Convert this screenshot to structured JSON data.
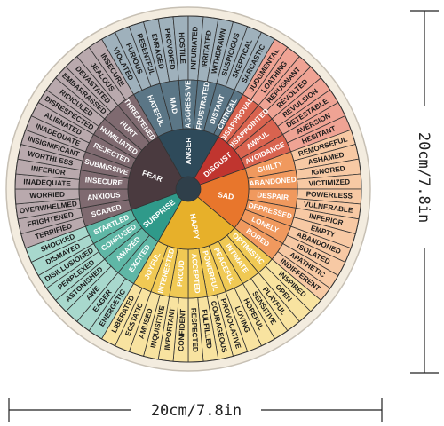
{
  "dimensions": {
    "horizontal": "20cm/7.8in",
    "vertical": "20cm/7.8in"
  },
  "colors": {
    "background": "#ffffff",
    "rim": "#f3ecdf",
    "rim_stroke": "#c7c0b4",
    "line": "#333333",
    "core_dark": "#2f3f4a"
  },
  "wheel": {
    "core": [
      {
        "label": "ANGER",
        "color": "#2e4a5a"
      },
      {
        "label": "DISGUST",
        "color": "#c0352f"
      },
      {
        "label": "SAD",
        "color": "#e8762c"
      },
      {
        "label": "HAPPY",
        "color": "#e7b02a"
      },
      {
        "label": "SURPRISE",
        "color": "#2f9a8a"
      },
      {
        "label": "FEAR",
        "color": "#4a3a3f"
      }
    ],
    "families": [
      {
        "name": "ANGER",
        "mid_color": "#5b7686",
        "outer_color": "#9fb1bc",
        "groups": [
          {
            "mid": "HATEFUL",
            "outer": [
              "VIOLATED",
              "FURIOUS",
              "RESENTFUL"
            ]
          },
          {
            "mid": "MAD",
            "outer": [
              "ENRAGED",
              "PROVOKED"
            ]
          },
          {
            "mid": "AGGRESSIVE",
            "outer": [
              "HOSTILE",
              "INFURIATED"
            ]
          },
          {
            "mid": "FRUSTRATED",
            "outer": [
              "IRRITATED",
              "WITHDRAWN"
            ]
          },
          {
            "mid": "DISTANT",
            "outer": [
              "SUSPICIOUS",
              "SKEPTICAL"
            ]
          },
          {
            "mid": "CRITICAL",
            "outer": [
              "SARCASTIC"
            ]
          }
        ]
      },
      {
        "name": "DISGUST",
        "mid_color": "#d9634f",
        "outer_color": "#efa394",
        "groups": [
          {
            "mid": "DISAPPROVAL",
            "outer": [
              "JUDGMENTAL",
              "LOATHING"
            ]
          },
          {
            "mid": "DISAPPOINTED",
            "outer": [
              "REPUGNANT",
              "REVOLTED"
            ]
          },
          {
            "mid": "AWFUL",
            "outer": [
              "REVULSION",
              "DETESTABLE"
            ]
          },
          {
            "mid": "AVOIDANCE",
            "outer": [
              "AVERSION",
              "HESITANT"
            ]
          }
        ]
      },
      {
        "name": "SAD",
        "mid_color": "#f0995e",
        "outer_color": "#f7c9a4",
        "groups": [
          {
            "mid": "GUILTY",
            "outer": [
              "REMORSEFUL",
              "ASHAMED"
            ]
          },
          {
            "mid": "ABANDONED",
            "outer": [
              "IGNORED",
              "VICTIMIZED"
            ]
          },
          {
            "mid": "DESPAIR",
            "outer": [
              "POWERLESS",
              "VULNERABLE"
            ]
          },
          {
            "mid": "DEPRESSED",
            "outer": [
              "INFERIOR",
              "EMPTY"
            ]
          },
          {
            "mid": "LONELY",
            "outer": [
              "ABANDONED",
              "ISOLATED"
            ]
          },
          {
            "mid": "BORED",
            "outer": [
              "APATHETIC",
              "INDIFFERENT"
            ]
          }
        ]
      },
      {
        "name": "HAPPY",
        "mid_color": "#f0c954",
        "outer_color": "#f8e3a0",
        "groups": [
          {
            "mid": "OPTIMISTIC",
            "outer": [
              "INSPIRED",
              "OPEN"
            ]
          },
          {
            "mid": "INTIMATE",
            "outer": [
              "PLAYFUL",
              "SENSITIVE"
            ]
          },
          {
            "mid": "PEACEFUL",
            "outer": [
              "HOPEFUL",
              "LOVING"
            ]
          },
          {
            "mid": "POWERFUL",
            "outer": [
              "PROVOCATIVE",
              "COURAGEOUS"
            ]
          },
          {
            "mid": "ACCEPTED",
            "outer": [
              "FULFILLED",
              "RESPECTED"
            ]
          },
          {
            "mid": "PROUD",
            "outer": [
              "CONFIDENT",
              "IMPORTANT"
            ]
          },
          {
            "mid": "INTERESTED",
            "outer": [
              "INQUISITIVE",
              "AMUSED"
            ]
          },
          {
            "mid": "JOYFUL",
            "outer": [
              "ECSTATIC",
              "LIBERATED"
            ]
          }
        ]
      },
      {
        "name": "SURPRISE",
        "mid_color": "#5fb7a6",
        "outer_color": "#a8d8cd",
        "groups": [
          {
            "mid": "EXCITED",
            "outer": [
              "ENERGETIC",
              "EAGER"
            ]
          },
          {
            "mid": "AMAZED",
            "outer": [
              "AWE",
              "ASTONISHED"
            ]
          },
          {
            "mid": "CONFUSED",
            "outer": [
              "PERPLEXED",
              "DISILLUSIONED"
            ]
          },
          {
            "mid": "STARTLED",
            "outer": [
              "DISMAYED",
              "SHOCKED"
            ]
          }
        ]
      },
      {
        "name": "FEAR",
        "mid_color": "#7f6a70",
        "outer_color": "#b9a9ad",
        "groups": [
          {
            "mid": "SCARED",
            "outer": [
              "TERRIFIED",
              "FRIGHTENED"
            ]
          },
          {
            "mid": "ANXIOUS",
            "outer": [
              "OVERWHELMED",
              "WORRIED"
            ]
          },
          {
            "mid": "INSECURE",
            "outer": [
              "INADEQUATE",
              "INFERIOR"
            ]
          },
          {
            "mid": "SUBMISSIVE",
            "outer": [
              "WORTHLESS",
              "INSIGNIFICANT"
            ]
          },
          {
            "mid": "REJECTED",
            "outer": [
              "INADEQUATE",
              "ALIENATED"
            ]
          },
          {
            "mid": "HUMILIATED",
            "outer": [
              "DISRESPECTED",
              "RIDICULED"
            ]
          },
          {
            "mid": "HURT",
            "outer": [
              "EMBARRASSED",
              "DEVASTATED"
            ]
          },
          {
            "mid": "THREATENED",
            "outer": [
              "JEALOUS",
              "INSECURE"
            ]
          }
        ]
      }
    ]
  }
}
